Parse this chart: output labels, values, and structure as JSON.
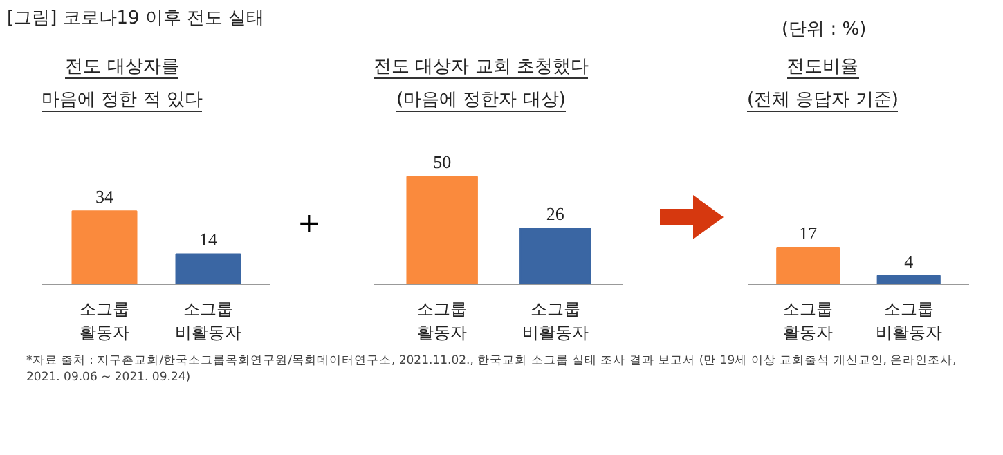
{
  "chart_data": [
    {
      "type": "bar",
      "title": "[그림] 코로나19 이후 전도 실태",
      "subtitle": "전도 대상자를\n마음에 정한 적 있다",
      "categories": [
        "소그룹\n활동자",
        "소그룹\n비활동자"
      ],
      "values": [
        34,
        14
      ],
      "colors": [
        "#fa8a3d",
        "#3a66a3"
      ],
      "data_labels": true,
      "tick_labels": "x",
      "annotations": [
        "(단위 : %)"
      ]
    },
    {
      "type": "bar",
      "subtitle": "전도 대상자 교회 초청했다\n(마음에 정한자 대상)",
      "categories": [
        "소그룹\n활동자",
        "소그룹\n비활동자"
      ],
      "values": [
        50,
        26
      ],
      "colors": [
        "#fa8a3d",
        "#3a66a3"
      ],
      "data_labels": true,
      "tick_labels": "x",
      "annotations": [
        "+"
      ]
    },
    {
      "type": "bar",
      "subtitle": "전도비율\n(전체 응답자 기준)",
      "categories": [
        "소그룹\n활동자",
        "소그룹\n비활동자"
      ],
      "values": [
        17,
        4
      ],
      "colors": [
        "#fa8a3d",
        "#3a66a3"
      ],
      "data_labels": true,
      "tick_labels": "x",
      "annotations": [
        "*자료 출처 : 지구촌교회/한국소그룹목회연구원/목회데이터연구소, 2021.11.02., 한국교회 소그룹 실태 조사 결과 보고서 (만 19세 이상 교회출석 개신교인, 온라인조사,\n2021. 09.06 ~ 2021. 09.24)"
      ]
    }
  ]
}
